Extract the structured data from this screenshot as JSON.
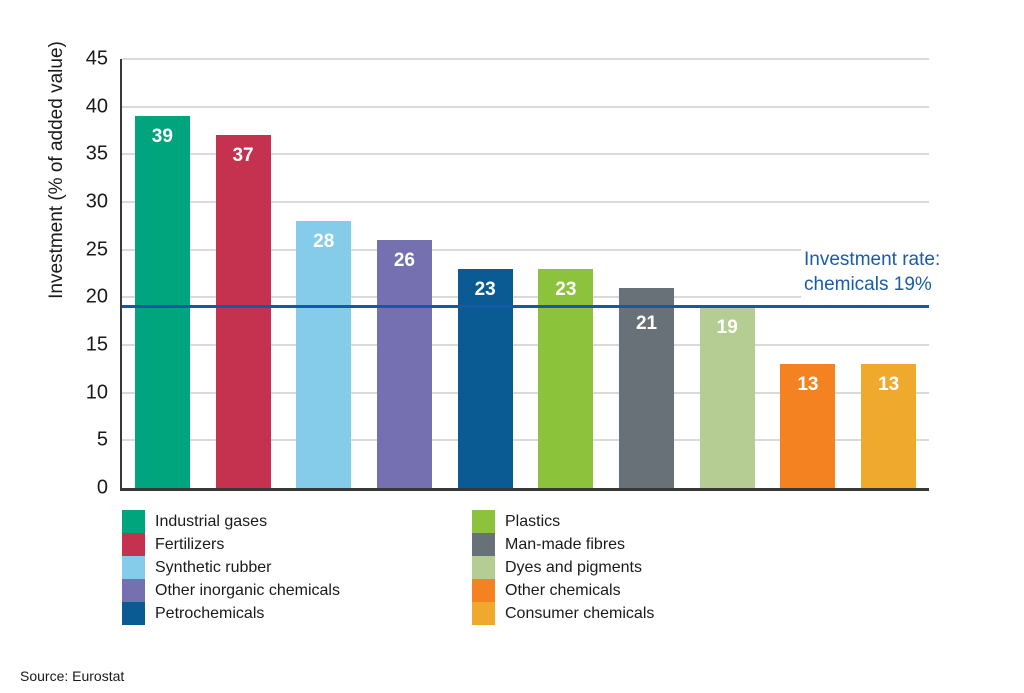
{
  "chart_data": {
    "type": "bar",
    "title": "",
    "ylabel": "Investment (% of added value)",
    "ylim": [
      0,
      45
    ],
    "ytick_step": 5,
    "yticks": [
      0,
      5,
      10,
      15,
      20,
      25,
      30,
      35,
      40,
      45
    ],
    "grid": true,
    "gridline_color": "#dadada",
    "axis_color": "#383838",
    "value_label_color": "#ffffff",
    "legend_position": "bottom-two-columns",
    "categories": [
      "Industrial gases",
      "Fertilizers",
      "Synthetic rubber",
      "Other inorganic chemicals",
      "Petrochemicals",
      "Plastics",
      "Man-made fibres",
      "Dyes and pigments",
      "Other chemicals",
      "Consumer chemicals"
    ],
    "values": [
      39,
      37,
      28,
      26,
      23,
      23,
      21,
      19,
      13,
      13
    ],
    "bar_colors": [
      "#00a47d",
      "#c43250",
      "#85cbea",
      "#7571b1",
      "#0a5a94",
      "#8cc23c",
      "#687078",
      "#b5cd92",
      "#f58220",
      "#efa92d"
    ],
    "reference_line": {
      "value": 19,
      "color": "#1558a5",
      "annotation": [
        "Investment rate:",
        "chemicals 19%"
      ],
      "annotation_color": "#1a5ca8"
    }
  },
  "source_note": "Source: Eurostat"
}
